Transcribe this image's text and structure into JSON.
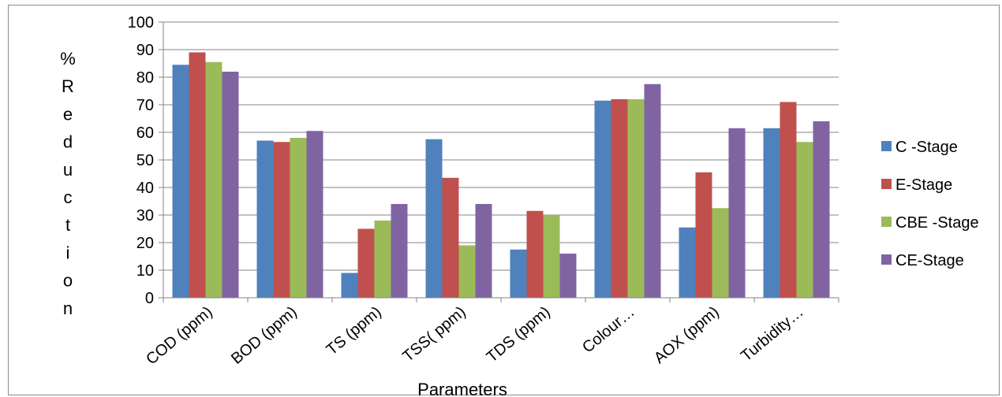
{
  "chart_data": {
    "type": "bar",
    "title": "",
    "xlabel": "Parameters",
    "ylabel": "% Reduction",
    "ylim": [
      0,
      100
    ],
    "ytick_step": 10,
    "grid": true,
    "legend_position": "right",
    "categories": [
      "COD (ppm)",
      "BOD (ppm)",
      "TS (ppm)",
      "TSS( ppm)",
      "TDS (ppm)",
      "Colour…",
      "AOX (ppm)",
      "Turbidity…"
    ],
    "series": [
      {
        "name": "C -Stage",
        "color": "#4F81BD",
        "values": [
          84.5,
          57.0,
          9.0,
          57.5,
          17.5,
          71.5,
          25.5,
          61.5
        ]
      },
      {
        "name": "E-Stage",
        "color": "#C0504D",
        "values": [
          89.0,
          56.5,
          25.0,
          43.5,
          31.5,
          72.0,
          45.5,
          71.0
        ]
      },
      {
        "name": "CBE -Stage",
        "color": "#9BBB59",
        "values": [
          85.5,
          58.0,
          28.0,
          19.0,
          30.0,
          72.0,
          32.5,
          56.5
        ]
      },
      {
        "name": "CE-Stage",
        "color": "#8064A2",
        "values": [
          82.0,
          60.5,
          34.0,
          34.0,
          16.0,
          77.5,
          61.5,
          64.0
        ]
      }
    ]
  }
}
